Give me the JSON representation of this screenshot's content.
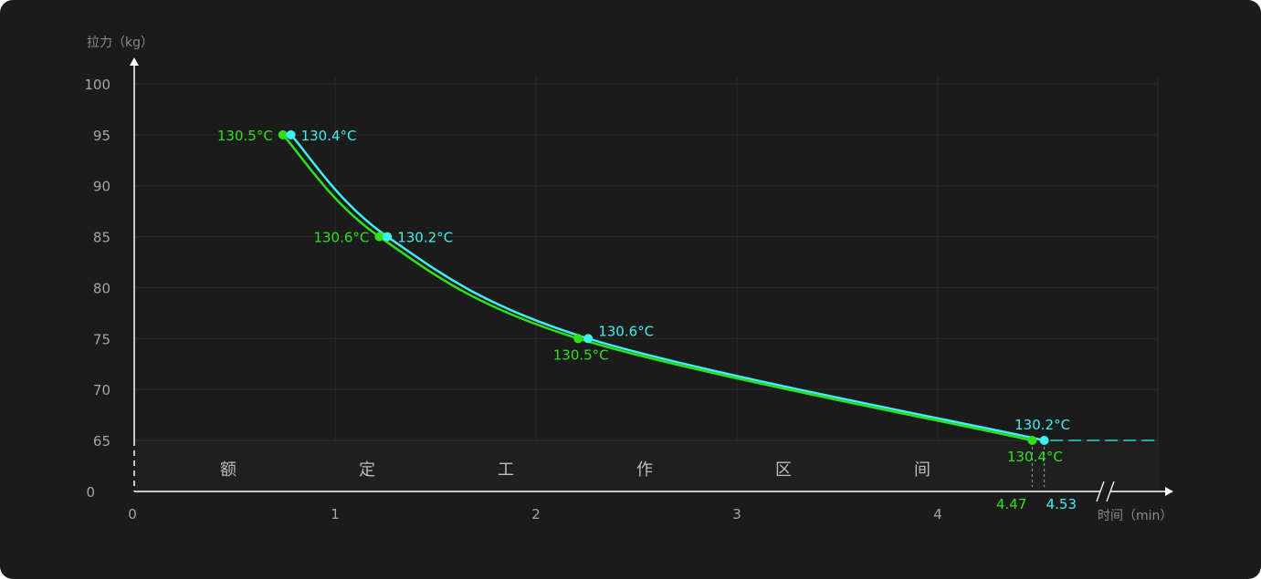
{
  "chart_data": {
    "type": "line",
    "ylabel": "拉力（kg）",
    "xlabel": "时间（min）",
    "xlim": [
      0,
      5.05
    ],
    "ylim": [
      65,
      100
    ],
    "x_ticks": [
      0,
      1,
      2,
      3,
      4
    ],
    "y_ticks": [
      100,
      95,
      90,
      85,
      80,
      75,
      70,
      65
    ],
    "y_bottom_label": "0",
    "axis_break": "x",
    "grid": true,
    "zone_label_chars": [
      "额",
      "定",
      "工",
      "作",
      "区",
      "间"
    ],
    "end_markers": [
      {
        "label": "4.47",
        "x": 4.47,
        "color": "#2ee21a"
      },
      {
        "label": "4.53",
        "x": 4.53,
        "color": "#3ff0f0"
      }
    ],
    "series": [
      {
        "color": "#2ee21a",
        "points": [
          {
            "x": 0.74,
            "y": 95,
            "label": "130.5°C",
            "label_pos": "left"
          },
          {
            "x": 1.22,
            "y": 85,
            "label": "130.6°C",
            "label_pos": "left"
          },
          {
            "x": 2.21,
            "y": 75,
            "label": "130.5°C",
            "label_pos": "below"
          },
          {
            "x": 4.47,
            "y": 65,
            "label": "130.4°C",
            "label_pos": "below"
          }
        ]
      },
      {
        "color": "#3ff0f0",
        "points": [
          {
            "x": 0.78,
            "y": 95,
            "label": "130.4°C",
            "label_pos": "right"
          },
          {
            "x": 1.26,
            "y": 85,
            "label": "130.2°C",
            "label_pos": "right"
          },
          {
            "x": 2.26,
            "y": 75,
            "label": "130.6°C",
            "label_pos": "right-above"
          },
          {
            "x": 4.53,
            "y": 65,
            "label": "130.2°C",
            "label_pos": "above"
          }
        ]
      }
    ]
  }
}
